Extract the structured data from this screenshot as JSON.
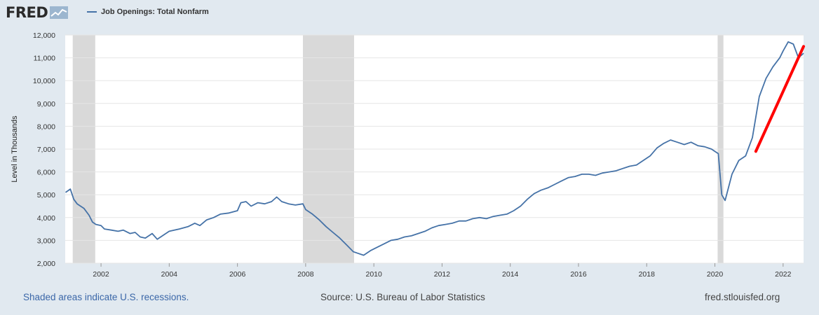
{
  "header": {
    "logo_text": "FRED",
    "logo_icon": "fred-chart-icon",
    "series_legend": "Job Openings: Total Nonfarm"
  },
  "footer": {
    "left": "Shaded areas indicate U.S. recessions.",
    "middle": "Source: U.S. Bureau of Labor Statistics",
    "right": "fred.stlouisfed.org"
  },
  "chart_data": {
    "type": "line",
    "title": "",
    "xlabel": "",
    "ylabel": "Level in Thousands",
    "xlim": [
      2000.95,
      2022.6
    ],
    "ylim": [
      2000,
      12000
    ],
    "y_ticks": [
      2000,
      3000,
      4000,
      5000,
      6000,
      7000,
      8000,
      9000,
      10000,
      11000,
      12000
    ],
    "y_tick_labels": [
      "2,000",
      "3,000",
      "4,000",
      "5,000",
      "6,000",
      "7,000",
      "8,000",
      "9,000",
      "10,000",
      "11,000",
      "12,000"
    ],
    "x_ticks": [
      2002,
      2004,
      2006,
      2008,
      2010,
      2012,
      2014,
      2016,
      2018,
      2020,
      2022
    ],
    "x_tick_labels": [
      "2002",
      "2004",
      "2006",
      "2008",
      "2010",
      "2012",
      "2014",
      "2016",
      "2018",
      "2020",
      "2022"
    ],
    "grid": true,
    "colors": {
      "line": "#4572a7",
      "recession": "#d9d9d9",
      "annotation": "#ff0000",
      "background": "#e1e9f0",
      "plot": "#ffffff"
    },
    "recessions": [
      [
        2001.17,
        2001.83
      ],
      [
        2007.92,
        2009.42
      ],
      [
        2020.08,
        2020.25
      ]
    ],
    "annotation": {
      "type": "arrow-line",
      "color": "#ff0000",
      "from": [
        2021.2,
        6900
      ],
      "to": [
        2022.6,
        11500
      ]
    },
    "series": [
      {
        "name": "Job Openings: Total Nonfarm",
        "x": [
          2000.96,
          2001.1,
          2001.2,
          2001.3,
          2001.5,
          2001.65,
          2001.75,
          2001.85,
          2002.0,
          2002.1,
          2002.3,
          2002.5,
          2002.65,
          2002.85,
          2003.0,
          2003.15,
          2003.3,
          2003.5,
          2003.65,
          2003.85,
          2004.0,
          2004.3,
          2004.55,
          2004.75,
          2004.9,
          2005.1,
          2005.3,
          2005.5,
          2005.75,
          2006.0,
          2006.1,
          2006.25,
          2006.4,
          2006.6,
          2006.8,
          2007.0,
          2007.15,
          2007.3,
          2007.5,
          2007.7,
          2007.92,
          2008.0,
          2008.2,
          2008.4,
          2008.6,
          2008.8,
          2009.0,
          2009.2,
          2009.4,
          2009.5,
          2009.7,
          2009.9,
          2010.1,
          2010.3,
          2010.5,
          2010.7,
          2010.9,
          2011.1,
          2011.3,
          2011.5,
          2011.7,
          2011.9,
          2012.1,
          2012.3,
          2012.5,
          2012.7,
          2012.9,
          2013.1,
          2013.3,
          2013.5,
          2013.7,
          2013.9,
          2014.1,
          2014.3,
          2014.5,
          2014.7,
          2014.9,
          2015.1,
          2015.3,
          2015.5,
          2015.7,
          2015.9,
          2016.1,
          2016.3,
          2016.5,
          2016.7,
          2016.9,
          2017.1,
          2017.3,
          2017.5,
          2017.7,
          2017.9,
          2018.1,
          2018.3,
          2018.5,
          2018.7,
          2018.9,
          2019.1,
          2019.3,
          2019.5,
          2019.7,
          2019.9,
          2020.0,
          2020.1,
          2020.2,
          2020.3,
          2020.5,
          2020.7,
          2020.9,
          2021.1,
          2021.3,
          2021.5,
          2021.7,
          2021.9,
          2022.0,
          2022.15,
          2022.3,
          2022.45,
          2022.6
        ],
        "values": [
          5100,
          5250,
          4800,
          4600,
          4400,
          4100,
          3800,
          3700,
          3650,
          3500,
          3450,
          3400,
          3450,
          3300,
          3350,
          3150,
          3100,
          3300,
          3050,
          3250,
          3400,
          3500,
          3600,
          3750,
          3650,
          3900,
          4000,
          4150,
          4200,
          4300,
          4650,
          4700,
          4500,
          4650,
          4600,
          4700,
          4900,
          4700,
          4600,
          4550,
          4600,
          4350,
          4150,
          3900,
          3600,
          3350,
          3100,
          2800,
          2500,
          2450,
          2350,
          2550,
          2700,
          2850,
          3000,
          3050,
          3150,
          3200,
          3300,
          3400,
          3550,
          3650,
          3700,
          3750,
          3850,
          3850,
          3950,
          4000,
          3950,
          4050,
          4100,
          4150,
          4300,
          4500,
          4800,
          5050,
          5200,
          5300,
          5450,
          5600,
          5750,
          5800,
          5900,
          5900,
          5850,
          5950,
          6000,
          6050,
          6150,
          6250,
          6300,
          6500,
          6700,
          7050,
          7250,
          7400,
          7300,
          7200,
          7300,
          7150,
          7100,
          7000,
          6900,
          6800,
          5000,
          4750,
          5900,
          6500,
          6700,
          7500,
          9300,
          10100,
          10600,
          11000,
          11300,
          11700,
          11600,
          11000,
          11200
        ]
      }
    ]
  }
}
